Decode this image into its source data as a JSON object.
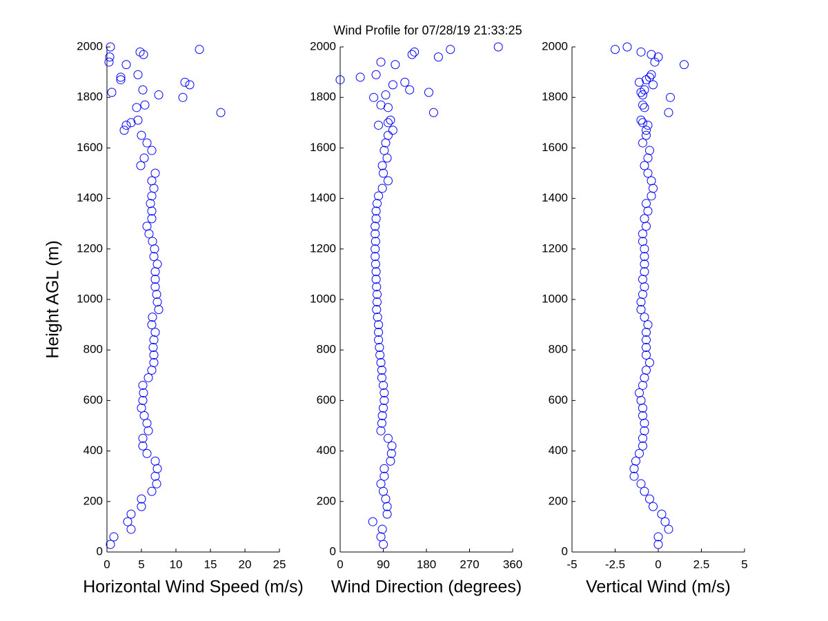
{
  "title": "Wind Profile for  07/28/19 21:33:25",
  "chart_data": [
    {
      "type": "scatter",
      "xlabel": "Horizontal Wind Speed (m/s)",
      "ylabel": "Height AGL (m)",
      "color": "#0000ff",
      "xlim": [
        0,
        25
      ],
      "xticks": [
        0,
        5,
        10,
        15,
        20,
        25
      ],
      "ylim": [
        0,
        2000
      ],
      "yticks": [
        0,
        200,
        400,
        600,
        800,
        1000,
        1200,
        1400,
        1600,
        1800,
        2000
      ],
      "x": [
        0.5,
        1.0,
        3.5,
        3,
        3.5,
        5,
        5,
        6.5,
        7.2,
        7,
        7.3,
        7,
        5.8,
        5.2,
        5.2,
        6,
        5.8,
        5.4,
        5,
        5.2,
        5.3,
        5.2,
        6,
        6.5,
        6.8,
        6.8,
        6.7,
        6.8,
        7,
        6.5,
        6.6,
        7.5,
        7.3,
        7.2,
        7,
        7,
        7,
        7.3,
        6.8,
        6.9,
        6.6,
        6.1,
        5.8,
        6.5,
        6.5,
        6.3,
        6.5,
        6.8,
        6.5,
        7,
        4.9,
        5.4,
        6.5,
        5.8,
        5,
        2.5,
        2.8,
        3.5,
        4.5,
        16.5,
        4.3,
        5.5,
        11,
        7.5,
        0.7,
        5.2,
        12,
        11.3,
        2,
        2,
        4.5,
        2.8,
        0.3,
        0.4,
        5.3,
        4.8,
        13.4,
        0.5
      ],
      "y": [
        30,
        60,
        90,
        120,
        150,
        180,
        210,
        240,
        270,
        300,
        330,
        360,
        390,
        420,
        450,
        480,
        510,
        540,
        570,
        600,
        630,
        660,
        690,
        720,
        750,
        780,
        810,
        840,
        870,
        900,
        930,
        960,
        990,
        1020,
        1050,
        1080,
        1110,
        1140,
        1170,
        1200,
        1230,
        1260,
        1290,
        1320,
        1350,
        1380,
        1410,
        1440,
        1470,
        1500,
        1530,
        1560,
        1590,
        1620,
        1650,
        1670,
        1690,
        1700,
        1710,
        1740,
        1760,
        1770,
        1800,
        1810,
        1820,
        1830,
        1850,
        1860,
        1870,
        1880,
        1890,
        1930,
        1940,
        1960,
        1970,
        1980,
        1990,
        2000
      ]
    },
    {
      "type": "scatter",
      "xlabel": "Wind Direction (degrees)",
      "color": "#0000ff",
      "xlim": [
        0,
        360
      ],
      "xticks": [
        0,
        90,
        180,
        270,
        360
      ],
      "ylim": [
        0,
        2000
      ],
      "yticks": [
        0,
        200,
        400,
        600,
        800,
        1000,
        1200,
        1400,
        1600,
        1800,
        2000
      ],
      "x": [
        90,
        85,
        88,
        68,
        98,
        98,
        95,
        90,
        85,
        92,
        92,
        105,
        107,
        108,
        100,
        85,
        87,
        88,
        90,
        92,
        92,
        90,
        87,
        87,
        85,
        83,
        82,
        80,
        80,
        80,
        78,
        76,
        77,
        77,
        76,
        75,
        75,
        74,
        73,
        73,
        74,
        73,
        73,
        75,
        75,
        77,
        80,
        88,
        100,
        90,
        88,
        98,
        92,
        95,
        100,
        110,
        80,
        100,
        105,
        195,
        100,
        85,
        70,
        95,
        185,
        145,
        110,
        135,
        0,
        42,
        75,
        115,
        85,
        205,
        150,
        155,
        230,
        330
      ],
      "y": [
        30,
        60,
        90,
        120,
        150,
        180,
        210,
        240,
        270,
        300,
        330,
        360,
        390,
        420,
        450,
        480,
        510,
        540,
        570,
        600,
        630,
        660,
        690,
        720,
        750,
        780,
        810,
        840,
        870,
        900,
        930,
        960,
        990,
        1020,
        1050,
        1080,
        1110,
        1140,
        1170,
        1200,
        1230,
        1260,
        1290,
        1320,
        1350,
        1380,
        1410,
        1440,
        1470,
        1500,
        1530,
        1560,
        1590,
        1620,
        1650,
        1670,
        1690,
        1700,
        1710,
        1740,
        1760,
        1770,
        1800,
        1810,
        1820,
        1830,
        1850,
        1860,
        1870,
        1880,
        1890,
        1930,
        1940,
        1960,
        1970,
        1980,
        1990,
        2000
      ]
    },
    {
      "type": "scatter",
      "xlabel": "Vertical Wind (m/s)",
      "color": "#0000ff",
      "xlim": [
        -5,
        5
      ],
      "xticks": [
        -5,
        -2.5,
        0,
        2.5,
        5
      ],
      "ylim": [
        0,
        2000
      ],
      "yticks": [
        0,
        200,
        400,
        600,
        800,
        1000,
        1200,
        1400,
        1600,
        1800,
        2000
      ],
      "x": [
        0,
        0,
        0.6,
        0.4,
        0.2,
        -0.3,
        -0.5,
        -0.8,
        -1,
        -1.4,
        -1.4,
        -1.3,
        -1.1,
        -0.9,
        -0.9,
        -0.8,
        -0.8,
        -0.9,
        -0.9,
        -1,
        -1.1,
        -0.9,
        -0.8,
        -0.7,
        -0.5,
        -0.7,
        -0.7,
        -0.7,
        -0.7,
        -0.6,
        -0.8,
        -1,
        -1,
        -0.9,
        -0.8,
        -0.9,
        -0.8,
        -0.8,
        -0.8,
        -0.8,
        -0.9,
        -0.9,
        -0.7,
        -0.8,
        -0.6,
        -0.7,
        -0.4,
        -0.3,
        -0.4,
        -0.6,
        -0.8,
        -0.6,
        -0.5,
        -0.9,
        -0.7,
        -0.7,
        -0.6,
        -0.9,
        -1,
        0.6,
        -0.8,
        -0.9,
        0.7,
        -0.9,
        -1,
        -0.8,
        -0.3,
        -1.1,
        -0.7,
        -0.5,
        -0.4,
        1.5,
        -0.2,
        0,
        -0.4,
        -1,
        -2.5,
        -1.8
      ],
      "y": [
        30,
        60,
        90,
        120,
        150,
        180,
        210,
        240,
        270,
        300,
        330,
        360,
        390,
        420,
        450,
        480,
        510,
        540,
        570,
        600,
        630,
        660,
        690,
        720,
        750,
        780,
        810,
        840,
        870,
        900,
        930,
        960,
        990,
        1020,
        1050,
        1080,
        1110,
        1140,
        1170,
        1200,
        1230,
        1260,
        1290,
        1320,
        1350,
        1380,
        1410,
        1440,
        1470,
        1500,
        1530,
        1560,
        1590,
        1620,
        1650,
        1670,
        1690,
        1700,
        1710,
        1740,
        1760,
        1770,
        1800,
        1810,
        1820,
        1830,
        1850,
        1860,
        1870,
        1880,
        1890,
        1930,
        1940,
        1960,
        1970,
        1980,
        1990,
        2000
      ]
    }
  ]
}
